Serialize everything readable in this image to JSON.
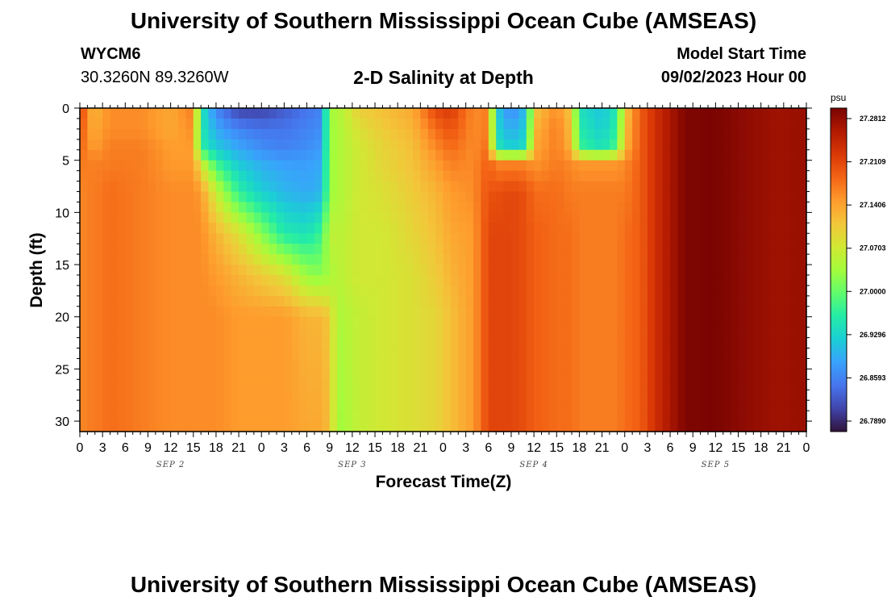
{
  "header": {
    "title": "University of Southern Mississippi Ocean Cube (AMSEAS)",
    "station_id": "WYCM6",
    "coords": "30.3260N  89.3260W",
    "plot_title": "2-D Salinity at Depth",
    "start_label": "Model Start Time",
    "start_value": "09/02/2023 Hour 00"
  },
  "footer": {
    "title": "University of Southern Mississippi Ocean Cube (AMSEAS)"
  },
  "chart_data": {
    "type": "heatmap",
    "title": "2-D Salinity at Depth",
    "xlabel": "Forecast Time(Z)",
    "ylabel": "Depth (ft)",
    "x_tick_labels": [
      "0",
      "3",
      "6",
      "9",
      "12",
      "15",
      "18",
      "21",
      "0",
      "3",
      "6",
      "9",
      "12",
      "15",
      "18",
      "21",
      "0",
      "3",
      "6",
      "9",
      "12",
      "15",
      "18",
      "21",
      "0",
      "3",
      "6",
      "9",
      "12",
      "15",
      "18",
      "21",
      "0"
    ],
    "x_range_hours": [
      0,
      96
    ],
    "date_labels": [
      {
        "label": "SEP 2",
        "hour": 12
      },
      {
        "label": "SEP 3",
        "hour": 36
      },
      {
        "label": "SEP 4",
        "hour": 60
      },
      {
        "label": "SEP 5",
        "hour": 84
      }
    ],
    "y_ticks": [
      0,
      5,
      10,
      15,
      20,
      25,
      30
    ],
    "ylim": [
      0,
      31
    ],
    "y_inverted": true,
    "colorbar": {
      "unit": "psu",
      "labels": [
        "27.2812",
        "27.2109",
        "27.1406",
        "27.0703",
        "27.0000",
        "26.9296",
        "26.8593",
        "26.7890"
      ],
      "min": 26.789,
      "max": 27.2812,
      "colors": [
        "#30123b",
        "#4145ab",
        "#4675ed",
        "#39a2fc",
        "#1bcfd4",
        "#24eca6",
        "#61fc6c",
        "#a4fc3b",
        "#d1e834",
        "#f3c63a",
        "#fe9b2d",
        "#f36315",
        "#d93806",
        "#b11901",
        "#7a0402"
      ]
    },
    "profiles": {
      "depths": [
        0,
        2,
        4,
        5,
        8,
        12,
        16,
        20,
        31
      ],
      "columns": [
        {
          "hour": 0,
          "values": [
            27.22,
            27.2,
            27.18,
            27.16,
            27.15,
            27.15,
            27.15,
            27.15,
            27.15
          ]
        },
        {
          "hour": 1,
          "values": [
            27.14,
            27.14,
            27.15,
            27.16,
            27.16,
            27.16,
            27.16,
            27.16,
            27.16
          ]
        },
        {
          "hour": 2,
          "values": [
            27.12,
            27.13,
            27.14,
            27.155,
            27.16,
            27.16,
            27.16,
            27.16,
            27.16
          ]
        },
        {
          "hour": 4,
          "values": [
            27.15,
            27.15,
            27.16,
            27.16,
            27.17,
            27.17,
            27.17,
            27.17,
            27.17
          ]
        },
        {
          "hour": 8,
          "values": [
            27.15,
            27.15,
            27.16,
            27.16,
            27.16,
            27.16,
            27.16,
            27.16,
            27.16
          ]
        },
        {
          "hour": 12,
          "values": [
            27.13,
            27.13,
            27.14,
            27.14,
            27.15,
            27.15,
            27.15,
            27.15,
            27.15
          ]
        },
        {
          "hour": 15,
          "values": [
            27.16,
            27.15,
            27.14,
            27.14,
            27.15,
            27.15,
            27.15,
            27.15,
            27.15
          ]
        },
        {
          "hour": 16,
          "values": [
            26.96,
            26.96,
            26.97,
            27.06,
            27.14,
            27.15,
            27.15,
            27.15,
            27.15
          ]
        },
        {
          "hour": 18,
          "values": [
            26.87,
            26.9,
            26.93,
            26.97,
            27.06,
            27.12,
            27.14,
            27.15,
            27.15
          ]
        },
        {
          "hour": 21,
          "values": [
            26.82,
            26.87,
            26.9,
            26.92,
            26.97,
            27.08,
            27.12,
            27.14,
            27.14
          ]
        },
        {
          "hour": 24,
          "values": [
            26.82,
            26.86,
            26.88,
            26.9,
            26.93,
            27.02,
            27.1,
            27.14,
            27.14
          ]
        },
        {
          "hour": 27,
          "values": [
            26.84,
            26.86,
            26.87,
            26.89,
            26.91,
            26.96,
            27.08,
            27.14,
            27.14
          ]
        },
        {
          "hour": 30,
          "values": [
            26.86,
            26.87,
            26.88,
            26.89,
            26.9,
            26.95,
            27.03,
            27.12,
            27.13
          ]
        },
        {
          "hour": 32,
          "values": [
            26.87,
            26.88,
            26.89,
            26.9,
            26.91,
            26.98,
            27.02,
            27.12,
            27.13
          ]
        },
        {
          "hour": 33,
          "values": [
            27.04,
            27.03,
            27.03,
            27.03,
            27.03,
            27.06,
            27.04,
            27.1,
            27.11
          ]
        },
        {
          "hour": 34,
          "values": [
            27.04,
            27.04,
            27.04,
            27.04,
            27.04,
            27.05,
            27.05,
            27.04,
            27.03
          ]
        },
        {
          "hour": 37,
          "values": [
            27.1,
            27.08,
            27.07,
            27.07,
            27.07,
            27.07,
            27.07,
            27.06,
            27.06
          ]
        },
        {
          "hour": 40,
          "values": [
            27.11,
            27.1,
            27.09,
            27.09,
            27.08,
            27.07,
            27.07,
            27.07,
            27.07
          ]
        },
        {
          "hour": 44,
          "values": [
            27.13,
            27.12,
            27.11,
            27.11,
            27.1,
            27.09,
            27.08,
            27.08,
            27.08
          ]
        },
        {
          "hour": 47,
          "values": [
            27.2,
            27.17,
            27.15,
            27.14,
            27.12,
            27.11,
            27.1,
            27.09,
            27.09
          ]
        },
        {
          "hour": 49,
          "values": [
            27.21,
            27.19,
            27.17,
            27.16,
            27.14,
            27.13,
            27.12,
            27.11,
            27.11
          ]
        },
        {
          "hour": 52,
          "values": [
            27.15,
            27.15,
            27.15,
            27.15,
            27.15,
            27.14,
            27.14,
            27.14,
            27.14
          ]
        },
        {
          "hour": 54,
          "values": [
            27.16,
            27.16,
            27.17,
            27.18,
            27.19,
            27.2,
            27.2,
            27.2,
            27.2
          ]
        },
        {
          "hour": 55,
          "values": [
            26.93,
            26.94,
            26.96,
            27.15,
            27.19,
            27.2,
            27.2,
            27.2,
            27.2
          ]
        },
        {
          "hour": 57,
          "values": [
            26.87,
            26.9,
            26.93,
            27.15,
            27.2,
            27.2,
            27.2,
            27.2,
            27.2
          ]
        },
        {
          "hour": 59,
          "values": [
            26.92,
            26.93,
            26.95,
            27.15,
            27.19,
            27.19,
            27.19,
            27.19,
            27.19
          ]
        },
        {
          "hour": 60,
          "values": [
            27.1,
            27.12,
            27.13,
            27.14,
            27.17,
            27.18,
            27.18,
            27.18,
            27.18
          ]
        },
        {
          "hour": 63,
          "values": [
            27.15,
            27.16,
            27.16,
            27.16,
            27.17,
            27.17,
            27.17,
            27.17,
            27.17
          ]
        },
        {
          "hour": 65,
          "values": [
            27.1,
            27.11,
            27.12,
            27.15,
            27.16,
            27.17,
            27.17,
            27.17,
            27.17
          ]
        },
        {
          "hour": 66,
          "values": [
            26.95,
            26.96,
            26.98,
            27.14,
            27.16,
            27.16,
            27.16,
            27.16,
            27.16
          ]
        },
        {
          "hour": 69,
          "values": [
            26.92,
            26.93,
            26.95,
            27.14,
            27.16,
            27.16,
            27.16,
            27.16,
            27.16
          ]
        },
        {
          "hour": 71,
          "values": [
            26.96,
            26.97,
            26.99,
            27.14,
            27.16,
            27.16,
            27.16,
            27.16,
            27.16
          ]
        },
        {
          "hour": 72,
          "values": [
            27.1,
            27.11,
            27.12,
            27.15,
            27.16,
            27.17,
            27.17,
            27.17,
            27.17
          ]
        },
        {
          "hour": 74,
          "values": [
            27.18,
            27.18,
            27.18,
            27.18,
            27.18,
            27.18,
            27.18,
            27.18,
            27.18
          ]
        },
        {
          "hour": 76,
          "values": [
            27.22,
            27.22,
            27.22,
            27.22,
            27.22,
            27.22,
            27.22,
            27.22,
            27.22
          ]
        },
        {
          "hour": 78,
          "values": [
            27.25,
            27.25,
            27.25,
            27.25,
            27.25,
            27.25,
            27.25,
            27.25,
            27.25
          ]
        },
        {
          "hour": 80,
          "values": [
            27.278,
            27.278,
            27.278,
            27.278,
            27.278,
            27.278,
            27.278,
            27.278,
            27.278
          ]
        },
        {
          "hour": 84,
          "values": [
            27.281,
            27.281,
            27.281,
            27.281,
            27.281,
            27.281,
            27.281,
            27.281,
            27.281
          ]
        },
        {
          "hour": 88,
          "values": [
            27.268,
            27.268,
            27.268,
            27.268,
            27.268,
            27.268,
            27.268,
            27.268,
            27.268
          ]
        },
        {
          "hour": 92,
          "values": [
            27.258,
            27.258,
            27.258,
            27.258,
            27.258,
            27.258,
            27.258,
            27.258,
            27.258
          ]
        },
        {
          "hour": 96,
          "values": [
            27.262,
            27.262,
            27.262,
            27.262,
            27.262,
            27.262,
            27.262,
            27.262,
            27.262
          ]
        }
      ]
    }
  }
}
